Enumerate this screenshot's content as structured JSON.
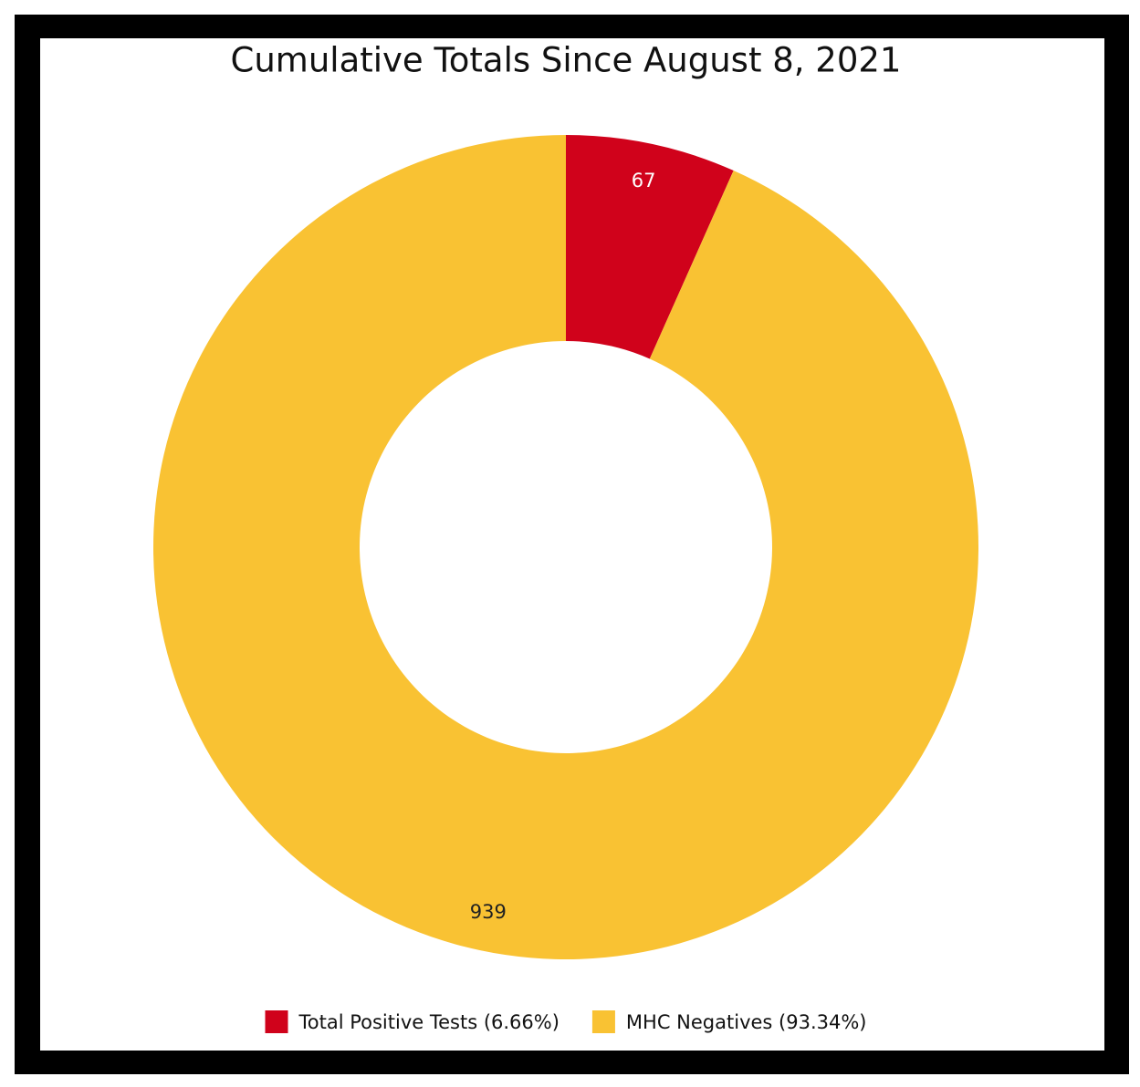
{
  "chart_data": {
    "type": "donut",
    "title": "Cumulative Totals Since August 8, 2021",
    "categories": [
      "Total Positive Tests (6.66%)",
      "MHC Negatives (93.34%)"
    ],
    "values": [
      67,
      939
    ],
    "colors": [
      "#d0021b",
      "#f9c233"
    ],
    "label_colors": [
      "#ffffff",
      "#222222"
    ],
    "legend": "bottom"
  }
}
